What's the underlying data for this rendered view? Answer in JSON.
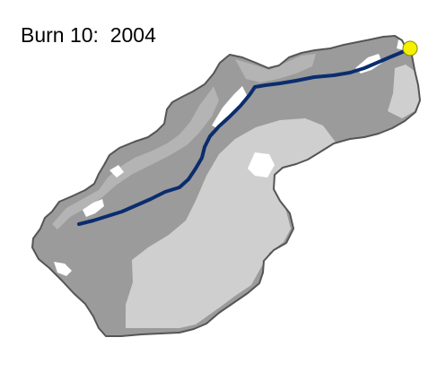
{
  "title": "Burn 10:  2004",
  "colors": {
    "background": "#ffffff",
    "watershed_outline": "#555555",
    "high_severity": "#9b9b9b",
    "low_severity": "#cfcfcf",
    "unburned": "#ffffff",
    "stream": "#0b2d6e",
    "outlet_fill": "#f5f000",
    "outlet_stroke": "#8a8a00"
  }
}
